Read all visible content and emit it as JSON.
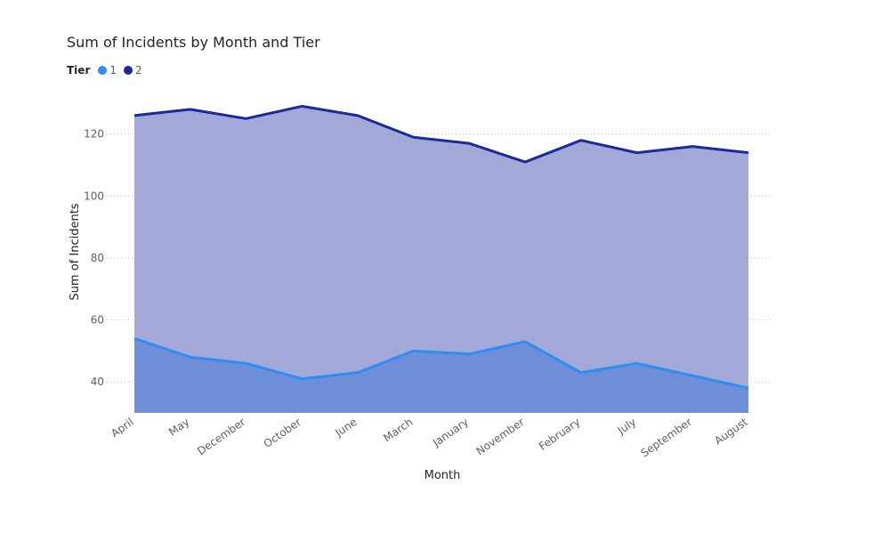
{
  "chart_data": {
    "type": "area",
    "title": "Sum of Incidents by Month and Tier",
    "xlabel": "Month",
    "ylabel": "Sum of Incidents",
    "legend_title": "Tier",
    "legend_position": "top-left",
    "categories": [
      "April",
      "May",
      "December",
      "October",
      "June",
      "March",
      "January",
      "November",
      "February",
      "July",
      "September",
      "August"
    ],
    "series": [
      {
        "name": "1",
        "values": [
          54,
          48,
          46,
          41,
          43,
          50,
          49,
          53,
          43,
          46,
          42,
          38
        ],
        "color": "#2f8df2",
        "fill": "#6e8ed8"
      },
      {
        "name": "2",
        "values": [
          126,
          128,
          125,
          129,
          126,
          119,
          117,
          111,
          118,
          114,
          116,
          114
        ],
        "color": "#1b2a9a",
        "fill": "#a2a8d8"
      }
    ],
    "yticks": [
      40,
      60,
      80,
      100,
      120
    ],
    "ylim": [
      30,
      134
    ],
    "grid": true
  }
}
